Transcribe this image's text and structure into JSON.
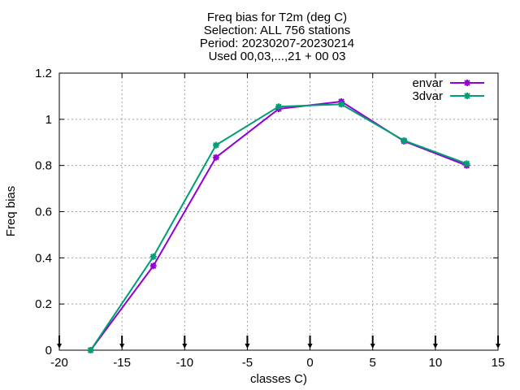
{
  "chart_data": {
    "type": "line",
    "title": [
      "Freq bias  for T2m (deg C)",
      "Selection: ALL    756 stations",
      "Period: 20230207-20230214",
      "Used 00,03,...,21 + 00 03"
    ],
    "xlabel": "classes C)",
    "ylabel": "Freq bias",
    "xlim": [
      -20,
      15
    ],
    "ylim": [
      0,
      1.2
    ],
    "xticks": [
      -20,
      -15,
      -10,
      -5,
      0,
      5,
      10,
      15
    ],
    "xtick_labels": [
      "-20",
      "-15",
      "-10",
      "-5",
      "0",
      "5",
      "10",
      "15"
    ],
    "yticks": [
      0,
      0.2,
      0.4,
      0.6,
      0.8,
      1,
      1.2
    ],
    "ytick_labels": [
      "0",
      "0.2",
      "0.4",
      "0.6",
      "0.8",
      "1",
      "1.2"
    ],
    "grid": true,
    "legend_position": "top-right",
    "series": [
      {
        "name": "envar",
        "color": "#9400d3",
        "x": [
          -17.5,
          -12.5,
          -7.5,
          -2.5,
          2.5,
          7.5,
          12.5
        ],
        "y": [
          0.0,
          0.365,
          0.835,
          1.045,
          1.077,
          0.905,
          0.8
        ]
      },
      {
        "name": "3dvar",
        "color": "#009e73",
        "x": [
          -17.5,
          -12.5,
          -7.5,
          -2.5,
          2.5,
          7.5,
          12.5
        ],
        "y": [
          0.0,
          0.405,
          0.888,
          1.055,
          1.065,
          0.908,
          0.808
        ]
      }
    ],
    "xaxis_markers": [
      -20,
      -15,
      -10,
      -5,
      0,
      5,
      10,
      15
    ]
  }
}
